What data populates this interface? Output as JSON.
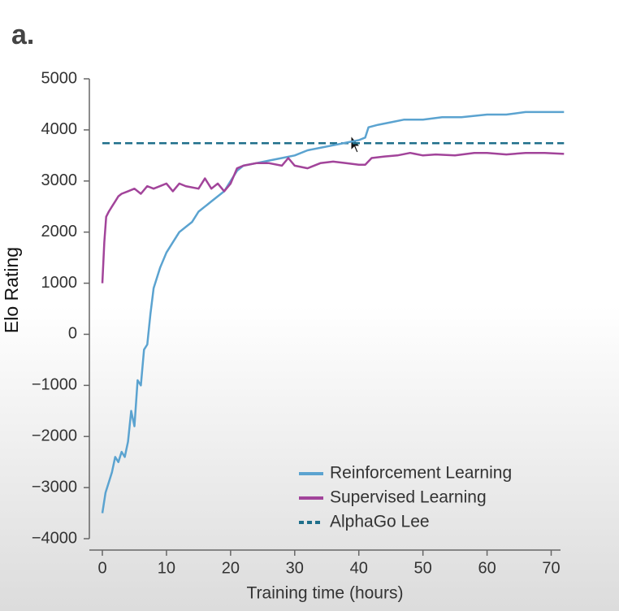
{
  "panel_label": "a.",
  "chart_data": {
    "type": "line",
    "xlabel": "Training time (hours)",
    "ylabel": "Elo Rating",
    "xlim": [
      0,
      72
    ],
    "ylim": [
      -4000,
      5000
    ],
    "xticks": [
      0,
      10,
      20,
      30,
      40,
      50,
      60,
      70
    ],
    "yticks": [
      {
        "value": -4000,
        "label": "−4000"
      },
      {
        "value": -3000,
        "label": "−3000"
      },
      {
        "value": -2000,
        "label": "−2000"
      },
      {
        "value": -1000,
        "label": "−1000"
      },
      0,
      1000,
      2000,
      3000,
      4000,
      5000
    ],
    "legend": "lower right",
    "series": [
      {
        "name": "Reinforcement Learning",
        "color": "#5ba3d0",
        "x": [
          0,
          0.5,
          1,
          1.5,
          2,
          2.5,
          3,
          3.5,
          4,
          4.5,
          5,
          5.5,
          6,
          6.5,
          7,
          7.5,
          8,
          9,
          10,
          11,
          12,
          13,
          14,
          15,
          16,
          17,
          18,
          19,
          20,
          21,
          22,
          24,
          26,
          28,
          30,
          32,
          34,
          36,
          38,
          40,
          41,
          41.5,
          43,
          45,
          47,
          50,
          53,
          56,
          60,
          63,
          66,
          68,
          70,
          72
        ],
        "values": [
          -3500,
          -3100,
          -2900,
          -2700,
          -2400,
          -2500,
          -2300,
          -2400,
          -2100,
          -1500,
          -1800,
          -900,
          -1000,
          -300,
          -200,
          400,
          900,
          1300,
          1600,
          1800,
          2000,
          2100,
          2200,
          2400,
          2500,
          2600,
          2700,
          2800,
          3000,
          3200,
          3300,
          3350,
          3400,
          3450,
          3500,
          3600,
          3650,
          3700,
          3750,
          3800,
          3850,
          4050,
          4100,
          4150,
          4200,
          4200,
          4250,
          4250,
          4300,
          4300,
          4350,
          4350,
          4350,
          4350
        ]
      },
      {
        "name": "Supervised Learning",
        "color": "#a2449a",
        "x": [
          0,
          0.3,
          0.6,
          1,
          1.5,
          2,
          2.5,
          3,
          4,
          5,
          6,
          7,
          8,
          9,
          10,
          11,
          12,
          13,
          15,
          16,
          17,
          18,
          19,
          20,
          21,
          22,
          24,
          26,
          28,
          29,
          30,
          32,
          34,
          36,
          38,
          40,
          41,
          42,
          44,
          46,
          48,
          50,
          52,
          55,
          58,
          60,
          63,
          66,
          69,
          72
        ],
        "values": [
          1000,
          1800,
          2300,
          2400,
          2500,
          2600,
          2700,
          2750,
          2800,
          2850,
          2750,
          2900,
          2850,
          2900,
          2950,
          2800,
          2950,
          2900,
          2850,
          3050,
          2850,
          2950,
          2800,
          2950,
          3250,
          3300,
          3350,
          3350,
          3300,
          3450,
          3300,
          3250,
          3350,
          3380,
          3350,
          3320,
          3320,
          3450,
          3480,
          3500,
          3550,
          3500,
          3520,
          3500,
          3550,
          3550,
          3520,
          3550,
          3550,
          3530
        ]
      }
    ],
    "reference_lines": [
      {
        "name": "AlphaGo Lee",
        "value": 3740,
        "color": "#1f6f8b",
        "style": "dashed"
      }
    ]
  }
}
